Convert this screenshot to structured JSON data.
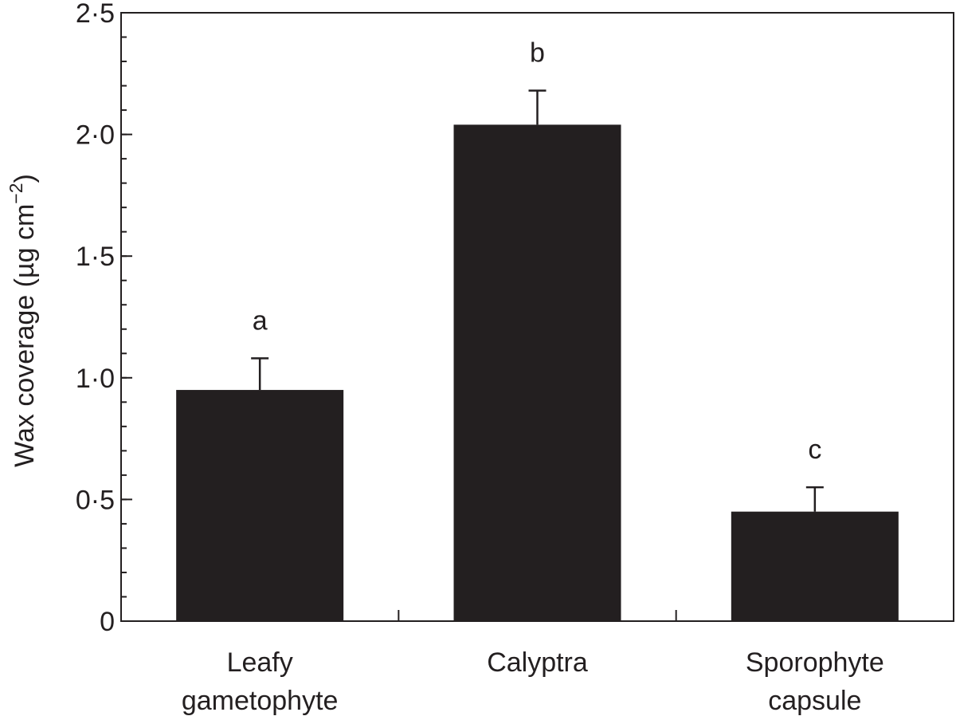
{
  "chart_data": {
    "type": "bar",
    "ylabel": "Wax coverage (µg cm",
    "ylabel_superscript": "−2",
    "ylabel_close": ")",
    "ylim": [
      0,
      2.5
    ],
    "grid": false,
    "y_major_ticks": [
      0,
      0.5,
      1.0,
      1.5,
      2.0,
      2.5
    ],
    "y_tick_labels": [
      "0",
      "0·5",
      "1·0",
      "1·5",
      "2·0",
      "2·5"
    ],
    "y_minor_step": 0.1,
    "categories": [
      [
        "Leafy",
        "gametophyte"
      ],
      [
        "Calyptra"
      ],
      [
        "Sporophyte",
        "capsule"
      ]
    ],
    "values": [
      0.95,
      2.04,
      0.45
    ],
    "error_upper": [
      1.08,
      2.18,
      0.55
    ],
    "significance_letters": [
      "a",
      "b",
      "c"
    ],
    "bar_color": "#231f20"
  }
}
